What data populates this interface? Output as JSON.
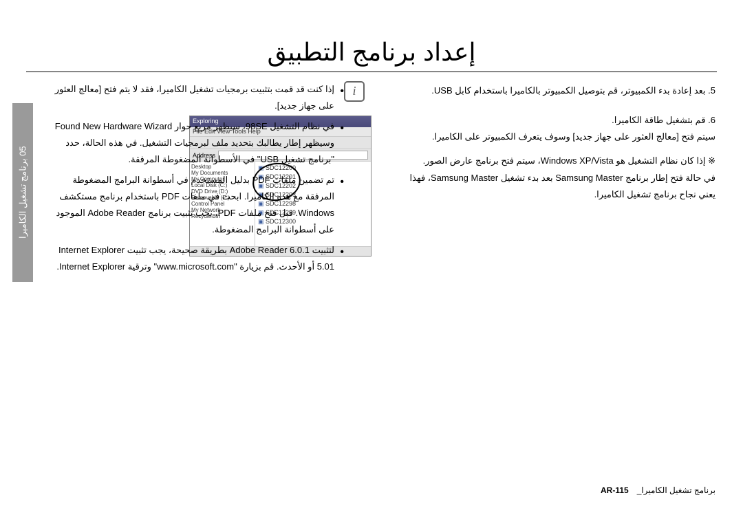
{
  "title": "إعداد برنامج التطبيق",
  "sidebar_label": "05  برنامج تشغيل الكاميرا",
  "right": {
    "step5": "5. بعد إعادة بدء الكمبيوتر، قم بتوصيل الكمبيوتر بالكاميرا باستخدام كابل USB.",
    "step6_line1": "6. قم بتشغيل طاقة الكاميرا.",
    "step6_line2": "سيتم فتح [معالج العثور على جهاز جديد] وسوف يتعرف الكمبيوتر على الكاميرا.",
    "note_line1": "※ إذا كان نظام التشغيل هو Windows XP/Vista، سيتم فتح برنامج عارض الصور.",
    "note_line2": "في حالة فتح إطار برنامج Samsung Master بعد بدء تشغيل Samsung Master، فهذا يعني نجاح برنامج تشغيل الكاميرا."
  },
  "screenshot": {
    "title": "Exploring",
    "menu": "File  Edit  View  Tools  Help",
    "addr_label": "Address",
    "addr_value": " ",
    "tree": [
      "Desktop",
      "  My Documents",
      "  My Computer",
      "    Local Disk (C:)",
      "    DVD Drive (D:)",
      "    Removable (E:)",
      "  Control Panel",
      "  My Network",
      "  Recycle Bin"
    ],
    "files": [
      "SDC12200",
      "SDC12201",
      "SDC12202",
      "SDC12203",
      "SDC12298",
      "SDC12299",
      "SDC12300"
    ],
    "status": " "
  },
  "left": {
    "b1": "إذا كنت قد قمت بتثبيت برمجيات تشغيل الكاميرا، فقد لا يتم فتح [معالج العثور على جهاز جديد].",
    "b2": "في نظام التشغيل 98SE، سيظهر مربع حوار Found New Hardware Wizard وسيظهر إطار يطالبك بتحديد ملف لبرمجيات التشغيل. في هذه الحالة، حدد \"برنامج تشغيل USB\" في الأسطوانة المضغوطة المرفقة.",
    "b3": "تم تضمين ملفات PDF بدليل المستخدم في أسطوانة البرامج المضغوطة المرفقة مع هذه الكاميرا. ابحث في ملفات PDF باستخدام برنامج مستكشف Windows. قبل فتح ملفات PDF، يجب تثبيت برنامج Adobe Reader الموجود على أسطوانة البرامج المضغوطة.",
    "b4": "لتثبيت Adobe Reader 6.0.1 بطريقة صحيحة، يجب تثبيت Internet Explorer 5.01 أو الأحدث. قم بزيارة \"www.microsoft.com\" وترقية Internet Explorer."
  },
  "footer": {
    "page": "AR-115",
    "label": "برنامج تشغيل الكاميرا_"
  },
  "colors": {
    "sidebar_bg": "#9a9a9a",
    "text": "#000000"
  }
}
